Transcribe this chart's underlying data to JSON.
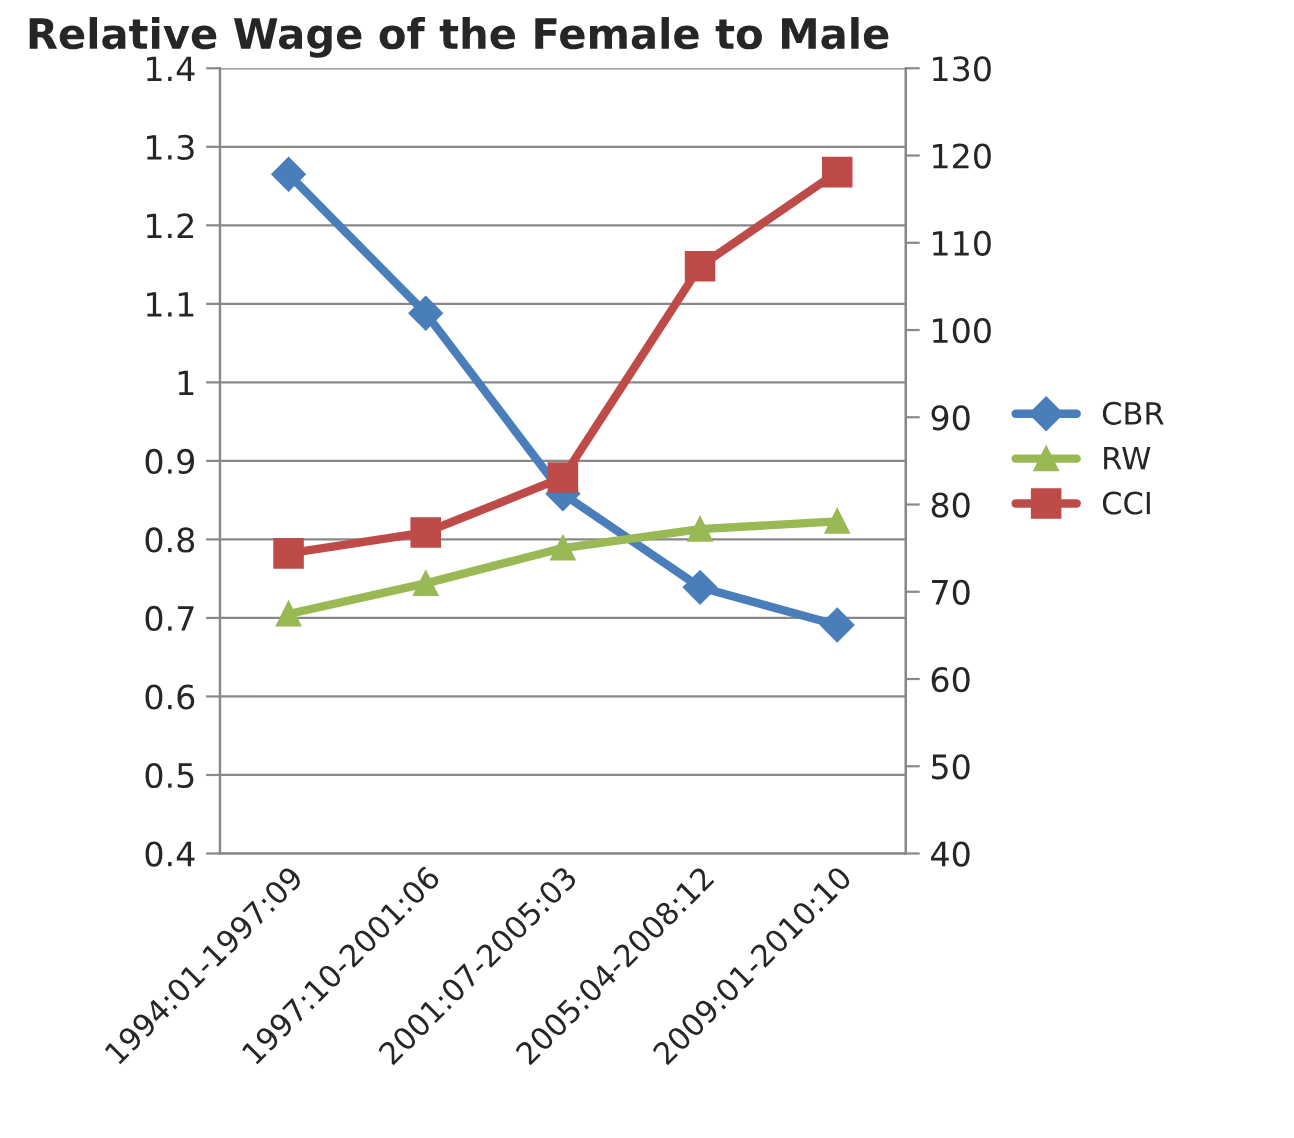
{
  "chart_data": {
    "type": "line",
    "title": "Relative Wage of the Female to Male",
    "categories": [
      "1994:01-1997:09",
      "1997:10-2001:06",
      "2001:07-2005:03",
      "2005:04-2008:12",
      "2009:01-2010:10"
    ],
    "series": [
      {
        "name": "CBR",
        "color": "#4a7ebb",
        "marker": "diamond",
        "values": [
          1.265,
          1.088,
          0.858,
          0.739,
          0.691
        ]
      },
      {
        "name": "RW",
        "color": "#98b954",
        "marker": "triangle",
        "values": [
          0.705,
          0.744,
          0.789,
          0.813,
          0.823
        ]
      },
      {
        "name": "CCI",
        "color": "#be4b48",
        "marker": "square",
        "axis": "y2",
        "values": [
          74.4,
          76.8,
          83.1,
          107.3,
          118.1
        ]
      }
    ],
    "ylim": [
      0.4,
      1.4
    ],
    "yticks": [
      0.4,
      0.5,
      0.6,
      0.7,
      0.8,
      0.9,
      1,
      1.1,
      1.2,
      1.3,
      1.4
    ],
    "y2lim": [
      40,
      130
    ],
    "y2ticks": [
      40,
      50,
      60,
      70,
      80,
      90,
      100,
      110,
      120,
      130
    ],
    "grid": "y",
    "legend": "right",
    "line_style": "solid"
  }
}
